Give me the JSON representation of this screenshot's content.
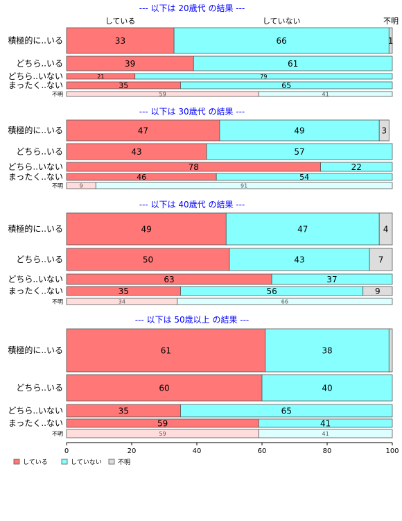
{
  "chart_data": {
    "type": "bar",
    "orientation": "horizontal",
    "stacked": true,
    "xlim": [
      0,
      100
    ],
    "x_ticks": [
      0,
      20,
      40,
      60,
      80,
      100
    ],
    "column_labels": [
      "している",
      "していない",
      "不明"
    ],
    "legend": [
      "している",
      "していない",
      "不明"
    ],
    "legend_position": "bottom-left",
    "colors": {
      "doing": "#ff7777",
      "not_doing": "#88ffff",
      "unknown": "#dddddd",
      "doing_light": "#ffdddd",
      "not_doing_light": "#ddffff",
      "title": "#0000ff",
      "border": "#333333"
    },
    "panels": [
      {
        "title": "--- 以下は 20歳代 の結果 ---",
        "rows": [
          {
            "label": "積極的に..いる",
            "values": [
              33,
              66,
              1
            ],
            "labels": [
              "33",
              "66",
              "1"
            ],
            "light": false
          },
          {
            "label": "どちら..いる",
            "values": [
              39,
              61,
              0
            ],
            "labels": [
              "39",
              "61",
              ""
            ],
            "light": false
          },
          {
            "label": "どちら..いない",
            "values": [
              21,
              79,
              0
            ],
            "labels": [
              "21",
              "79",
              ""
            ],
            "light": false
          },
          {
            "label": "まったく..ない",
            "values": [
              35,
              65,
              0
            ],
            "labels": [
              "35",
              "65",
              ""
            ],
            "light": false
          },
          {
            "label": "不明",
            "values": [
              59,
              41,
              0
            ],
            "labels": [
              "59",
              "41",
              ""
            ],
            "light": true
          }
        ]
      },
      {
        "title": "--- 以下は 30歳代 の結果 ---",
        "rows": [
          {
            "label": "積極的に..いる",
            "values": [
              47,
              49,
              3
            ],
            "labels": [
              "47",
              "49",
              "3"
            ],
            "light": false
          },
          {
            "label": "どちら..いる",
            "values": [
              43,
              57,
              0
            ],
            "labels": [
              "43",
              "57",
              ""
            ],
            "light": false
          },
          {
            "label": "どちら..いない",
            "values": [
              78,
              22,
              0
            ],
            "labels": [
              "78",
              "22",
              ""
            ],
            "light": false
          },
          {
            "label": "まったく..ない",
            "values": [
              46,
              54,
              0
            ],
            "labels": [
              "46",
              "54",
              ""
            ],
            "light": false
          },
          {
            "label": "不明",
            "values": [
              9,
              91,
              0
            ],
            "labels": [
              "9",
              "91",
              ""
            ],
            "light": true
          }
        ]
      },
      {
        "title": "--- 以下は 40歳代 の結果 ---",
        "rows": [
          {
            "label": "積極的に..いる",
            "values": [
              49,
              47,
              4
            ],
            "labels": [
              "49",
              "47",
              "4"
            ],
            "light": false
          },
          {
            "label": "どちら..いる",
            "values": [
              50,
              43,
              7
            ],
            "labels": [
              "50",
              "43",
              "7"
            ],
            "light": false
          },
          {
            "label": "どちら..いない",
            "values": [
              63,
              37,
              0
            ],
            "labels": [
              "63",
              "37",
              ""
            ],
            "light": false
          },
          {
            "label": "まったく..ない",
            "values": [
              35,
              56,
              9
            ],
            "labels": [
              "35",
              "56",
              "9"
            ],
            "light": false
          },
          {
            "label": "不明",
            "values": [
              34,
              66,
              0
            ],
            "labels": [
              "34",
              "66",
              ""
            ],
            "light": true
          }
        ]
      },
      {
        "title": "--- 以下は 50歳以上 の結果 ---",
        "rows": [
          {
            "label": "積極的に..いる",
            "values": [
              61,
              38,
              1
            ],
            "labels": [
              "61",
              "38",
              ""
            ],
            "light": false
          },
          {
            "label": "どちら..いる",
            "values": [
              60,
              40,
              0
            ],
            "labels": [
              "60",
              "40",
              ""
            ],
            "light": false
          },
          {
            "label": "どちら..いない",
            "values": [
              35,
              65,
              0
            ],
            "labels": [
              "35",
              "65",
              ""
            ],
            "light": false
          },
          {
            "label": "まったく..ない",
            "values": [
              59,
              41,
              0
            ],
            "labels": [
              "59",
              "41",
              ""
            ],
            "light": false
          },
          {
            "label": "不明",
            "values": [
              59,
              41,
              0
            ],
            "labels": [
              "59",
              "41",
              ""
            ],
            "light": true
          }
        ]
      }
    ]
  }
}
